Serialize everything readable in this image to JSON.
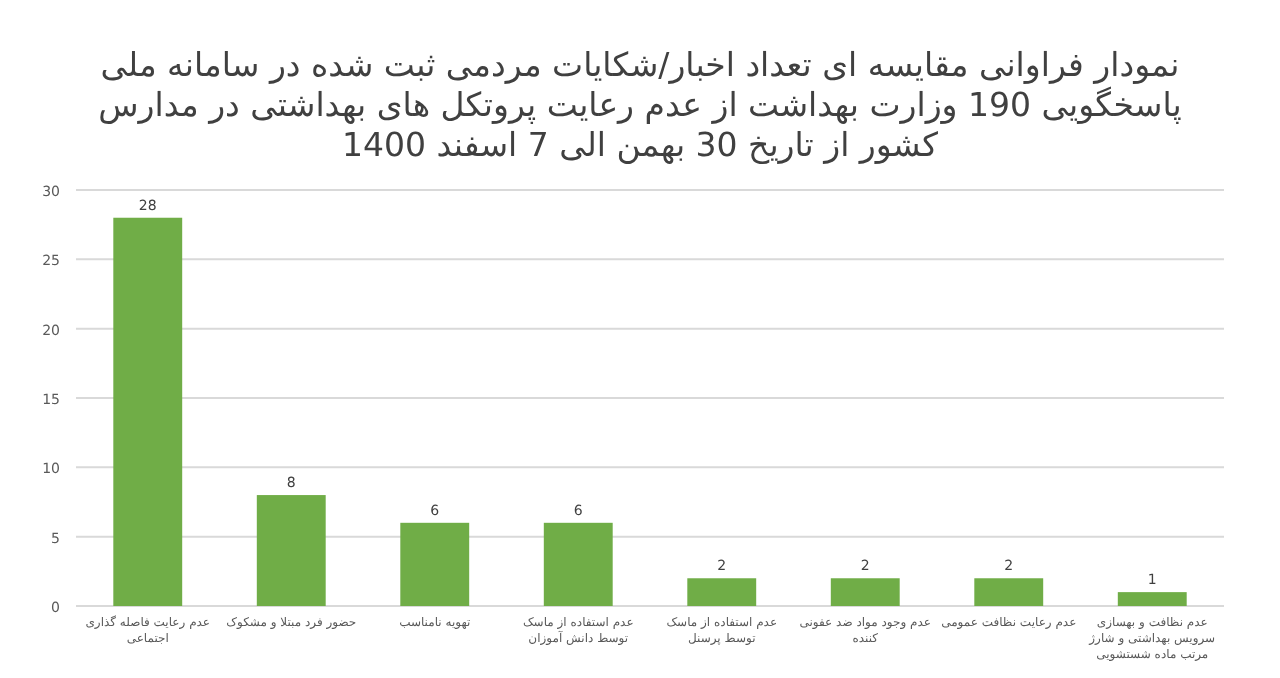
{
  "chart_data": {
    "type": "bar",
    "title": "نمودار فراوانی مقایسه ای تعداد اخبار/شکایات مردمی ثبت شده در سامانه ملی پاسخگویی 190 وزارت بهداشت از عدم رعایت پروتکل های بهداشتی در مدارس کشور از تاریخ 30 بهمن الی 7 اسفند 1400",
    "categories": [
      "عدم رعایت فاصله گذاری اجتماعی",
      "حضور فرد مبتلا و مشکوک",
      "تهویه نامناسب",
      "عدم استفاده از ماسک توسط دانش آموزان",
      "عدم استفاده از ماسک توسط پرسنل",
      "عدم وجود مواد ضد عفونی کننده",
      "عدم رعایت نظافت عمومی",
      "عدم نظافت و بهسازی سرویس بهداشتی و شارژ مرتب ماده شستشویی"
    ],
    "values": [
      28,
      8,
      6,
      6,
      2,
      2,
      2,
      1
    ],
    "color": "#70ad47",
    "ylim": [
      0,
      30
    ],
    "yticks": [
      0,
      5,
      10,
      15,
      20,
      25,
      30
    ],
    "grid": "y",
    "data_labels": true
  }
}
